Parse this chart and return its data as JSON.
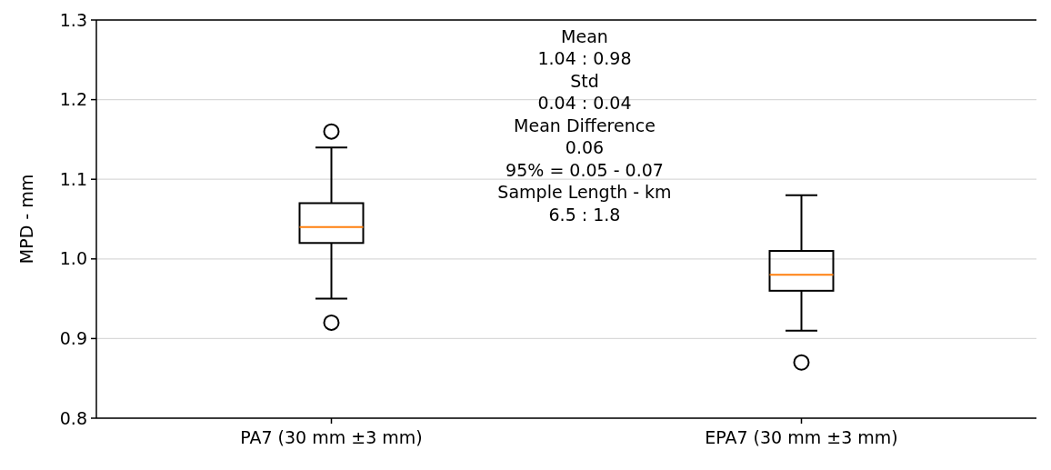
{
  "chart_data": {
    "type": "box",
    "ylabel": "MPD - mm",
    "categories": [
      "PA7 (30 mm ±3 mm)",
      "EPA7 (30 mm ±3 mm)"
    ],
    "boxes": [
      {
        "low": 0.95,
        "q1": 1.02,
        "median": 1.04,
        "q3": 1.07,
        "high": 1.14,
        "outliers": [
          1.16,
          0.92
        ]
      },
      {
        "low": 0.91,
        "q1": 0.96,
        "median": 0.98,
        "q3": 1.01,
        "high": 1.08,
        "outliers": [
          0.87
        ]
      }
    ],
    "ylim": [
      0.8,
      1.3
    ],
    "yticks": [
      0.8,
      0.9,
      {
        "value": 1,
        "label": "1.0"
      },
      1.1,
      1.2,
      1.3
    ],
    "grid": "y",
    "annotations": [
      "Mean",
      "1.04 : 0.98",
      "Std",
      "0.04 : 0.04",
      "Mean Difference",
      "0.06",
      "95% = 0.05 - 0.07",
      "Sample Length - km",
      "6.5 : 1.8"
    ]
  }
}
